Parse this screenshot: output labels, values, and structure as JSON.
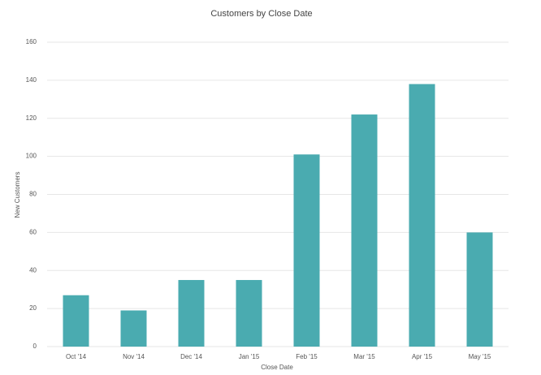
{
  "chart_data": {
    "type": "bar",
    "title": "Customers by Close Date",
    "x_label": "Close Date",
    "y_label": "New Customers",
    "categories": [
      "Oct '14",
      "Nov '14",
      "Dec '14",
      "Jan '15",
      "Feb '15",
      "Mar '15",
      "Apr '15",
      "May '15"
    ],
    "values": [
      27,
      19,
      35,
      35,
      101,
      122,
      138,
      60
    ],
    "color": "#4aabb0",
    "ylim": [
      0,
      160
    ],
    "yticks": [
      0,
      20,
      40,
      60,
      80,
      100,
      120,
      140,
      160
    ],
    "grid": true
  }
}
